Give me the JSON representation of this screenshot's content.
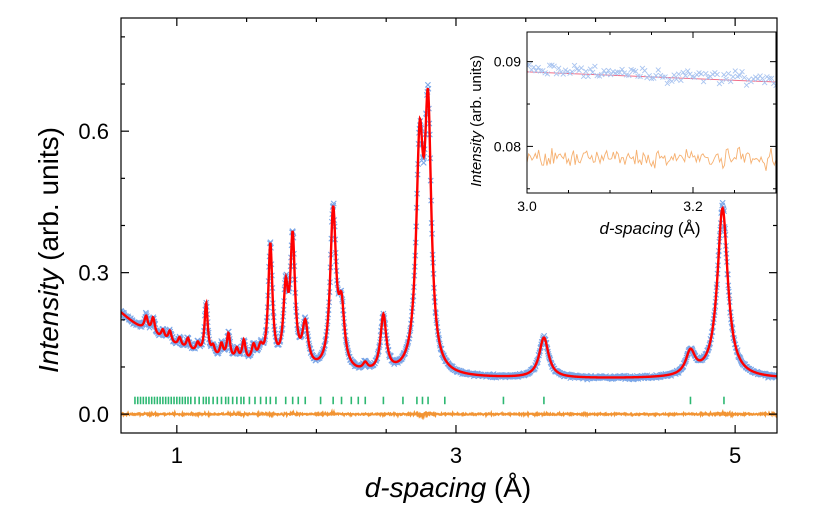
{
  "chart_data": [
    {
      "type": "scatter",
      "role": "main",
      "xlabel": {
        "italic": "d-spacing",
        "unit": " (Å)"
      },
      "ylabel": {
        "italic": "Intensity",
        "unit": " (arb. units)"
      },
      "xlim": [
        0.6,
        5.3
      ],
      "ylim": [
        -0.04,
        0.84
      ],
      "x_ticks": [
        1,
        3,
        5
      ],
      "y_ticks": [
        0.0,
        0.3,
        0.6
      ],
      "x_tick_labels": [
        "1",
        "3",
        "5"
      ],
      "y_tick_labels": [
        "0.0",
        "0.3",
        "0.6"
      ],
      "background": {
        "a": 0.075,
        "b": 0.14,
        "c": 1.9
      },
      "peaks": [
        {
          "d": 0.78,
          "h": 0.03,
          "w": 0.015
        },
        {
          "d": 0.83,
          "h": 0.035,
          "w": 0.015
        },
        {
          "d": 0.9,
          "h": 0.02,
          "w": 0.015
        },
        {
          "d": 0.95,
          "h": 0.025,
          "w": 0.015
        },
        {
          "d": 1.02,
          "h": 0.02,
          "w": 0.015
        },
        {
          "d": 1.08,
          "h": 0.025,
          "w": 0.015
        },
        {
          "d": 1.15,
          "h": 0.02,
          "w": 0.015
        },
        {
          "d": 1.21,
          "h": 0.11,
          "w": 0.014
        },
        {
          "d": 1.26,
          "h": 0.02,
          "w": 0.015
        },
        {
          "d": 1.32,
          "h": 0.03,
          "w": 0.015
        },
        {
          "d": 1.37,
          "h": 0.055,
          "w": 0.015
        },
        {
          "d": 1.43,
          "h": 0.025,
          "w": 0.015
        },
        {
          "d": 1.48,
          "h": 0.045,
          "w": 0.015
        },
        {
          "d": 1.55,
          "h": 0.035,
          "w": 0.018
        },
        {
          "d": 1.6,
          "h": 0.03,
          "w": 0.02
        },
        {
          "d": 1.67,
          "h": 0.255,
          "w": 0.018
        },
        {
          "d": 1.78,
          "h": 0.15,
          "w": 0.02
        },
        {
          "d": 1.83,
          "h": 0.265,
          "w": 0.02
        },
        {
          "d": 1.92,
          "h": 0.09,
          "w": 0.025
        },
        {
          "d": 2.12,
          "h": 0.335,
          "w": 0.025
        },
        {
          "d": 2.18,
          "h": 0.12,
          "w": 0.025
        },
        {
          "d": 2.35,
          "h": 0.015,
          "w": 0.02
        },
        {
          "d": 2.48,
          "h": 0.12,
          "w": 0.025
        },
        {
          "d": 2.74,
          "h": 0.45,
          "w": 0.03
        },
        {
          "d": 2.8,
          "h": 0.52,
          "w": 0.028
        },
        {
          "d": 3.63,
          "h": 0.085,
          "w": 0.04
        },
        {
          "d": 4.68,
          "h": 0.05,
          "w": 0.04
        },
        {
          "d": 4.91,
          "h": 0.36,
          "w": 0.045
        }
      ],
      "reflection_ticks": [
        0.7,
        0.72,
        0.74,
        0.76,
        0.78,
        0.8,
        0.82,
        0.84,
        0.86,
        0.88,
        0.9,
        0.92,
        0.94,
        0.96,
        0.98,
        1.0,
        1.02,
        1.04,
        1.06,
        1.08,
        1.1,
        1.13,
        1.16,
        1.19,
        1.21,
        1.23,
        1.26,
        1.29,
        1.32,
        1.35,
        1.37,
        1.4,
        1.43,
        1.46,
        1.48,
        1.52,
        1.56,
        1.6,
        1.64,
        1.67,
        1.71,
        1.78,
        1.83,
        1.87,
        1.92,
        2.03,
        2.12,
        2.18,
        2.25,
        2.3,
        2.35,
        2.48,
        2.62,
        2.72,
        2.76,
        2.8,
        2.92,
        3.34,
        3.63,
        4.68,
        4.92
      ],
      "ticks_y_center": 0.029,
      "ticks_half_height": 0.008,
      "difference_offset": 0.0,
      "colors": {
        "observed": "#7ba7e8",
        "calculated": "#ff0000",
        "difference": "#f29433",
        "reflections": "#2db872",
        "axis": "#000000"
      }
    },
    {
      "type": "scatter",
      "role": "inset",
      "xlabel": {
        "italic": "d-spacing",
        "unit": " (Å)"
      },
      "ylabel": {
        "italic": "Intensity",
        "unit": " (arb. units)"
      },
      "xlim": [
        3.0,
        3.3
      ],
      "ylim": [
        0.0745,
        0.0935
      ],
      "x_ticks": [
        3.0,
        3.2
      ],
      "y_ticks": [
        0.08,
        0.09
      ],
      "x_tick_labels": [
        "3.0",
        "3.2"
      ],
      "y_tick_labels": [
        "0.08",
        "0.09"
      ],
      "calc_line": [
        [
          3.0,
          0.0888
        ],
        [
          3.3,
          0.0876
        ]
      ],
      "observed_band": {
        "center": 0.0885,
        "spread": 0.0022,
        "n": 110
      },
      "difference_band": {
        "center": 0.0786,
        "spread": 0.0016,
        "n": 150
      },
      "colors": {
        "observed": "#a9c4f0",
        "calculated": "#f06f8a",
        "difference": "#f6b070",
        "axis": "#000000"
      }
    }
  ]
}
